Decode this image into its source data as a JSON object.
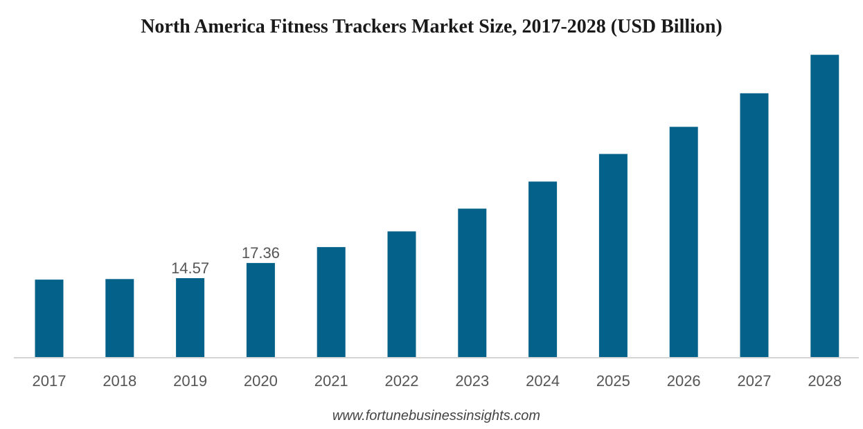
{
  "chart_data": {
    "type": "bar",
    "title": "North America Fitness Trackers Market Size, 2017-2028 (USD Billion)",
    "xlabel": "",
    "ylabel": "",
    "categories": [
      "2017",
      "2018",
      "2019",
      "2020",
      "2021",
      "2022",
      "2023",
      "2024",
      "2025",
      "2026",
      "2027",
      "2028"
    ],
    "values": [
      14.3,
      14.4,
      14.57,
      17.36,
      20.3,
      23.2,
      27.4,
      32.4,
      37.5,
      42.5,
      48.7,
      55.8
    ],
    "data_labels": [
      {
        "index": 2,
        "text": "14.57"
      },
      {
        "index": 3,
        "text": "17.36"
      }
    ],
    "ylim": [
      0,
      58
    ],
    "grid": false,
    "legend": "none",
    "bar_color": "#04628a",
    "source": "www.fortunebusinessinsights.com"
  }
}
